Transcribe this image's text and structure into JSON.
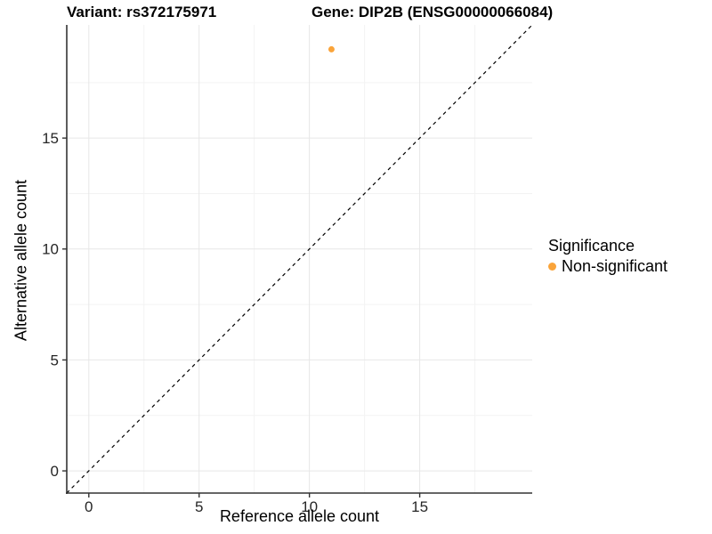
{
  "titles": {
    "variant": "Variant: rs372175971",
    "gene": "Gene: DIP2B (ENSG00000066084)"
  },
  "chart_data": {
    "type": "scatter",
    "xlabel": "Reference allele count",
    "ylabel": "Alternative allele count",
    "xlim": [
      -1,
      20.1
    ],
    "ylim": [
      -1,
      20.1
    ],
    "xticks": [
      0,
      5,
      10,
      15
    ],
    "yticks": [
      0,
      5,
      10,
      15
    ],
    "minor_gridline_offset": 2.5,
    "grid": true,
    "points": [
      {
        "x": 11,
        "y": 19,
        "series": "Non-significant"
      }
    ],
    "identity_line": {
      "slope": 1,
      "intercept": 0,
      "linetype": "dashed",
      "color": "#000000"
    },
    "legend": {
      "title": "Significance",
      "position": "right",
      "items": [
        {
          "label": "Non-significant",
          "color": "#FAA43A"
        }
      ]
    },
    "colors": {
      "point": "#FAA43A",
      "grid_major": "#E7E7E7",
      "grid_minor": "#F3F3F3",
      "axis_line": "#333333",
      "tick_mark": "#333333",
      "tick_text": "#262626",
      "background": "#FFFFFF"
    },
    "tick_font_px": 17,
    "point_radius_px": 3.5
  }
}
